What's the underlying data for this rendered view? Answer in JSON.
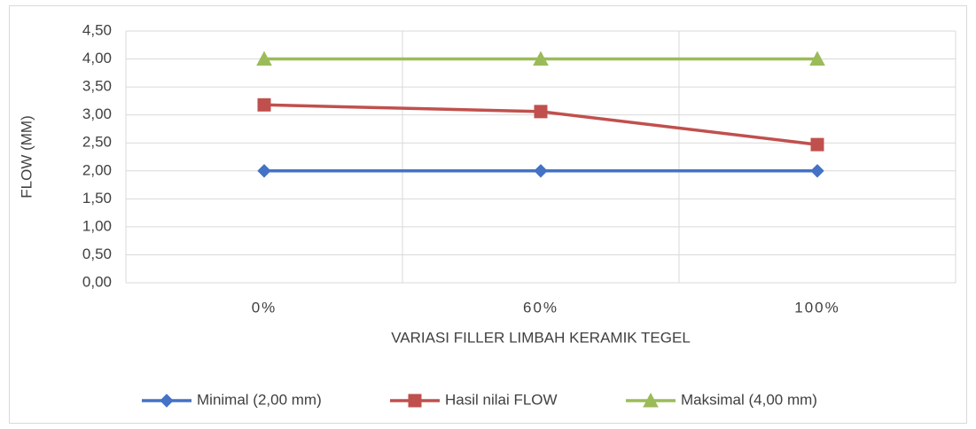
{
  "chart_data": {
    "type": "line",
    "x_label": "VARIASI FILLER LIMBAH KERAMIK TEGEL",
    "y_label": "FLOW (MM)",
    "categories": [
      "0%",
      "60%",
      "100%"
    ],
    "series": [
      {
        "name": "Minimal (2,00 mm)",
        "color": "#4472c4",
        "marker": "diamond",
        "values": [
          2.0,
          2.0,
          2.0
        ]
      },
      {
        "name": "Hasil nilai FLOW",
        "color": "#c0504d",
        "marker": "square",
        "values": [
          3.18,
          3.06,
          2.47
        ]
      },
      {
        "name": "Maksimal (4,00 mm)",
        "color": "#9bbb59",
        "marker": "triangle",
        "values": [
          4.0,
          4.0,
          4.0
        ]
      }
    ],
    "ylim": [
      0,
      4.5
    ],
    "yticks": [
      {
        "value": 0,
        "label": "0,00"
      },
      {
        "value": 0.5,
        "label": "0,50"
      },
      {
        "value": 1,
        "label": "1,00"
      },
      {
        "value": 1.5,
        "label": "1,50"
      },
      {
        "value": 2,
        "label": "2,00"
      },
      {
        "value": 2.5,
        "label": "2,50"
      },
      {
        "value": 3,
        "label": "3,00"
      },
      {
        "value": 3.5,
        "label": "3,50"
      },
      {
        "value": 4,
        "label": "4,00"
      },
      {
        "value": 4.5,
        "label": "4,50"
      }
    ],
    "grid": true,
    "legend": "bottom"
  }
}
